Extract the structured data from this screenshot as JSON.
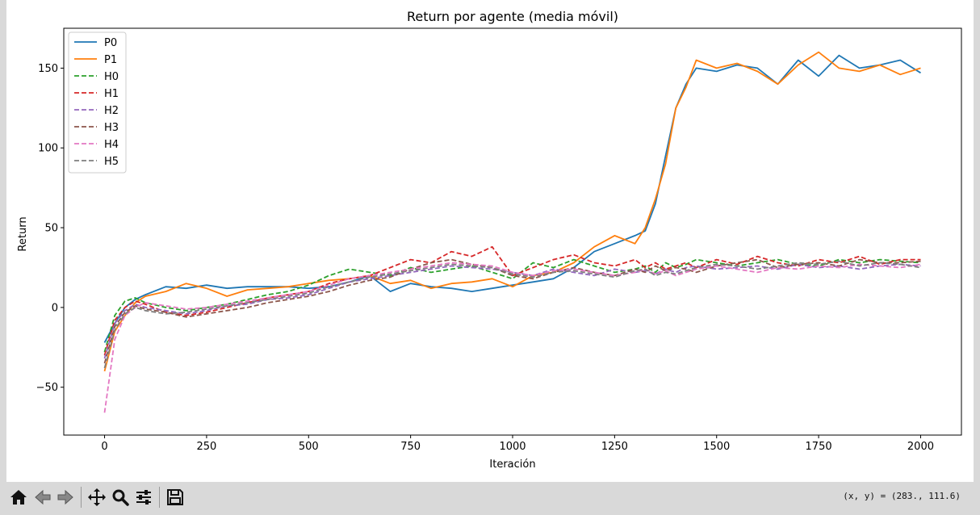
{
  "toolbar": {
    "buttons": [
      {
        "name": "home-icon",
        "label": "Home"
      },
      {
        "name": "back-icon",
        "label": "Back"
      },
      {
        "name": "forward-icon",
        "label": "Forward"
      },
      {
        "name": "pan-icon",
        "label": "Pan"
      },
      {
        "name": "zoom-icon",
        "label": "Zoom"
      },
      {
        "name": "configure-subplots-icon",
        "label": "Subplots"
      },
      {
        "name": "save-icon",
        "label": "Save"
      }
    ],
    "coords": "(x, y) = (283., 111.6)"
  },
  "chart_data": {
    "type": "line",
    "title": "Return por agente (media móvil)",
    "xlabel": "Iteración",
    "ylabel": "Return",
    "xlim": [
      -100,
      2100
    ],
    "ylim": [
      -80,
      175
    ],
    "xticks": [
      0,
      250,
      500,
      750,
      1000,
      1250,
      1500,
      1750,
      2000
    ],
    "yticks": [
      -50,
      0,
      50,
      100,
      150
    ],
    "grid": false,
    "legend_position": "top-left",
    "x": [
      0,
      25,
      50,
      75,
      100,
      150,
      200,
      250,
      300,
      350,
      400,
      450,
      500,
      550,
      600,
      650,
      700,
      750,
      800,
      850,
      900,
      950,
      1000,
      1050,
      1100,
      1150,
      1200,
      1250,
      1300,
      1325,
      1350,
      1375,
      1400,
      1425,
      1450,
      1500,
      1550,
      1600,
      1650,
      1700,
      1750,
      1800,
      1850,
      1900,
      1950,
      2000
    ],
    "series": [
      {
        "name": "P0",
        "color": "#1f77b4",
        "dash": "solid",
        "values": [
          -22,
          -10,
          0,
          5,
          8,
          13,
          12,
          14,
          12,
          13,
          13,
          13,
          12,
          13,
          16,
          20,
          10,
          15,
          13,
          12,
          10,
          12,
          14,
          16,
          18,
          25,
          35,
          40,
          45,
          48,
          65,
          95,
          125,
          140,
          150,
          148,
          152,
          150,
          140,
          155,
          145,
          158,
          150,
          152,
          155,
          147
        ]
      },
      {
        "name": "P1",
        "color": "#ff7f0e",
        "dash": "solid",
        "values": [
          -40,
          -15,
          -5,
          3,
          7,
          10,
          15,
          12,
          7,
          11,
          12,
          13,
          15,
          17,
          18,
          20,
          15,
          17,
          12,
          15,
          16,
          18,
          13,
          20,
          22,
          28,
          38,
          45,
          40,
          50,
          68,
          90,
          125,
          138,
          155,
          150,
          153,
          148,
          140,
          152,
          160,
          150,
          148,
          152,
          146,
          150
        ]
      },
      {
        "name": "H0",
        "color": "#2ca02c",
        "dash": "dashed",
        "values": [
          -28,
          -5,
          4,
          6,
          3,
          0,
          -2,
          0,
          2,
          5,
          8,
          10,
          14,
          20,
          24,
          22,
          20,
          25,
          22,
          24,
          26,
          22,
          18,
          28,
          25,
          30,
          26,
          22,
          24,
          26,
          22,
          28,
          25,
          27,
          30,
          28,
          26,
          28,
          30,
          27,
          26,
          30,
          28,
          30,
          29,
          28
        ]
      },
      {
        "name": "H1",
        "color": "#d62728",
        "dash": "dashed",
        "values": [
          -30,
          -8,
          0,
          4,
          2,
          -3,
          -5,
          -3,
          0,
          3,
          6,
          8,
          10,
          15,
          18,
          20,
          25,
          30,
          28,
          35,
          32,
          38,
          20,
          25,
          30,
          33,
          28,
          26,
          30,
          25,
          28,
          24,
          26,
          28,
          25,
          30,
          27,
          32,
          28,
          26,
          30,
          28,
          32,
          27,
          30,
          30
        ]
      },
      {
        "name": "H2",
        "color": "#9467bd",
        "dash": "dashed",
        "values": [
          -32,
          -10,
          -2,
          2,
          0,
          -2,
          -4,
          -2,
          1,
          2,
          5,
          6,
          8,
          12,
          16,
          18,
          20,
          22,
          24,
          26,
          25,
          24,
          22,
          20,
          24,
          22,
          20,
          24,
          22,
          23,
          21,
          24,
          22,
          25,
          26,
          24,
          25,
          26,
          24,
          27,
          25,
          26,
          24,
          26,
          27,
          26
        ]
      },
      {
        "name": "H3",
        "color": "#8c564b",
        "dash": "dashed",
        "values": [
          -35,
          -12,
          -3,
          1,
          -1,
          -3,
          -6,
          -4,
          -2,
          0,
          3,
          5,
          7,
          10,
          14,
          17,
          19,
          24,
          28,
          30,
          27,
          25,
          20,
          18,
          22,
          25,
          22,
          20,
          24,
          22,
          26,
          23,
          25,
          24,
          22,
          26,
          28,
          30,
          25,
          27,
          28,
          26,
          30,
          28,
          28,
          29
        ]
      },
      {
        "name": "H4",
        "color": "#e377c2",
        "dash": "dashed",
        "values": [
          -66,
          -20,
          -5,
          0,
          3,
          1,
          -1,
          0,
          2,
          4,
          6,
          8,
          10,
          14,
          18,
          20,
          22,
          24,
          26,
          28,
          27,
          26,
          22,
          20,
          23,
          24,
          22,
          20,
          22,
          24,
          21,
          23,
          20,
          22,
          24,
          26,
          24,
          22,
          25,
          24,
          26,
          25,
          27,
          26,
          25,
          27
        ]
      },
      {
        "name": "H5",
        "color": "#7f7f7f",
        "dash": "dashed",
        "values": [
          -38,
          -14,
          -4,
          0,
          -2,
          -4,
          -3,
          -1,
          1,
          3,
          5,
          7,
          9,
          13,
          16,
          19,
          21,
          23,
          25,
          27,
          26,
          25,
          21,
          19,
          22,
          23,
          21,
          19,
          23,
          24,
          20,
          22,
          21,
          23,
          25,
          27,
          26,
          24,
          26,
          28,
          27,
          29,
          26,
          28,
          27,
          25
        ]
      }
    ]
  }
}
